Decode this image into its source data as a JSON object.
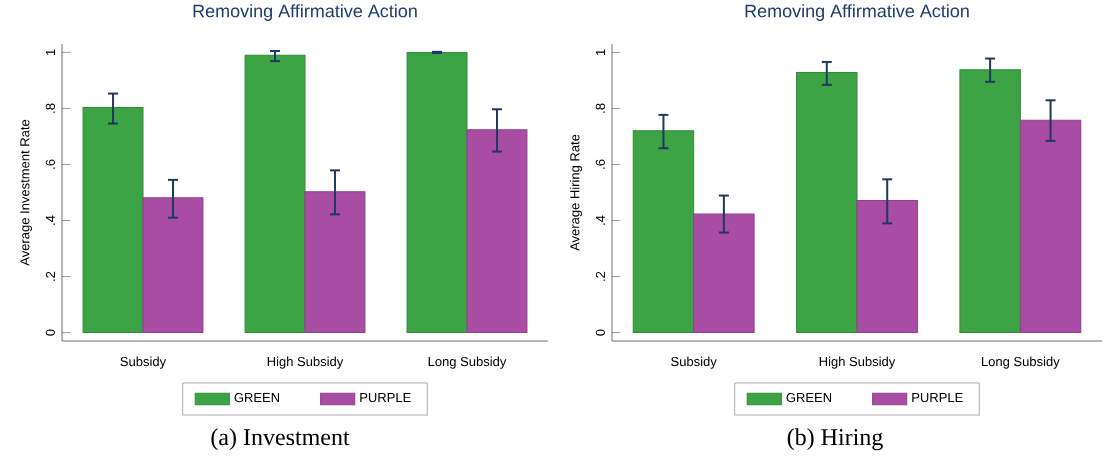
{
  "chart_data": [
    {
      "type": "bar",
      "title": "Removing Affirmative Action",
      "ylabel": "Average Investment Rate",
      "categories": [
        "Subsidy",
        "High Subsidy",
        "Long Subsidy"
      ],
      "series": [
        {
          "name": "GREEN",
          "color": "#3ca444",
          "values": [
            0.803,
            0.99,
            1.0
          ],
          "errors": [
            [
              0.746,
              0.853
            ],
            [
              0.969,
              1.005
            ],
            [
              0.998,
              1.002
            ]
          ]
        },
        {
          "name": "PURPLE",
          "color": "#a84ca4",
          "values": [
            0.481,
            0.503,
            0.724
          ],
          "errors": [
            [
              0.41,
              0.545
            ],
            [
              0.422,
              0.579
            ],
            [
              0.646,
              0.797
            ]
          ]
        }
      ],
      "ylim": [
        -0.03,
        1.03
      ],
      "yticks": [
        {
          "value": 0,
          "label": "0"
        },
        {
          "value": 0.2,
          "label": ".2"
        },
        {
          "value": 0.4,
          "label": ".4"
        },
        {
          "value": 0.6,
          "label": ".6"
        },
        {
          "value": 0.8,
          "label": ".8"
        },
        {
          "value": 1,
          "label": "1"
        }
      ],
      "legend": "bottom",
      "grid": false,
      "annotations": [
        "(a) Investment"
      ]
    },
    {
      "type": "bar",
      "title": "Removing Affirmative Action",
      "ylabel": "Average Hiring Rate",
      "categories": [
        "Subsidy",
        "High Subsidy",
        "Long Subsidy"
      ],
      "series": [
        {
          "name": "GREEN",
          "color": "#3ca444",
          "values": [
            0.72,
            0.928,
            0.938
          ],
          "errors": [
            [
              0.658,
              0.777
            ],
            [
              0.884,
              0.966
            ],
            [
              0.895,
              0.978
            ]
          ]
        },
        {
          "name": "PURPLE",
          "color": "#a84ca4",
          "values": [
            0.423,
            0.471,
            0.758
          ],
          "errors": [
            [
              0.357,
              0.489
            ],
            [
              0.39,
              0.547
            ],
            [
              0.684,
              0.829
            ]
          ]
        }
      ],
      "ylim": [
        -0.03,
        1.03
      ],
      "yticks": [
        {
          "value": 0,
          "label": "0"
        },
        {
          "value": 0.2,
          "label": ".2"
        },
        {
          "value": 0.4,
          "label": ".4"
        },
        {
          "value": 0.6,
          "label": ".6"
        },
        {
          "value": 0.8,
          "label": ".8"
        },
        {
          "value": 1,
          "label": "1"
        }
      ],
      "legend": "bottom",
      "grid": false,
      "annotations": [
        "(b) Hiring"
      ]
    }
  ]
}
